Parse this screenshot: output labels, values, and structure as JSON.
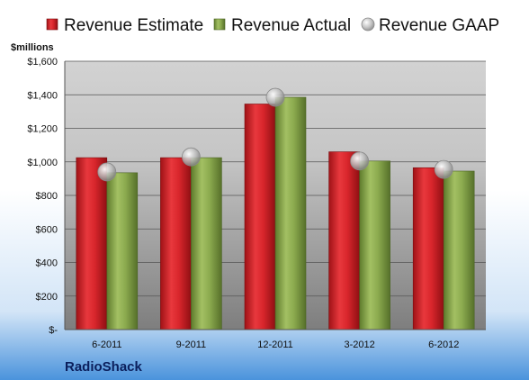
{
  "chart_data": {
    "type": "bar",
    "unit_label": "$millions",
    "company": "RadioShack",
    "categories": [
      "6-2011",
      "9-2011",
      "12-2011",
      "3-2012",
      "6-2012"
    ],
    "series": [
      {
        "name": "Revenue Estimate",
        "kind": "bar",
        "color": "#d9262c",
        "values": [
          1025,
          1025,
          1345,
          1060,
          965
        ]
      },
      {
        "name": "Revenue Actual",
        "kind": "bar",
        "color": "#8cab4f",
        "values": [
          935,
          1025,
          1385,
          1005,
          945
        ]
      },
      {
        "name": "Revenue GAAP",
        "kind": "marker",
        "color": "#b8b8b8",
        "values": [
          940,
          1030,
          1385,
          1005,
          955
        ]
      }
    ],
    "ylim": [
      0,
      1600
    ],
    "y_ticks": [
      0,
      200,
      400,
      600,
      800,
      1000,
      1200,
      1400,
      1600
    ],
    "y_tick_labels": [
      "$-",
      "$200",
      "$400",
      "$600",
      "$800",
      "$1,000",
      "$1,200",
      "$1,400",
      "$1,600"
    ],
    "grid": true,
    "legend_position": "top"
  }
}
